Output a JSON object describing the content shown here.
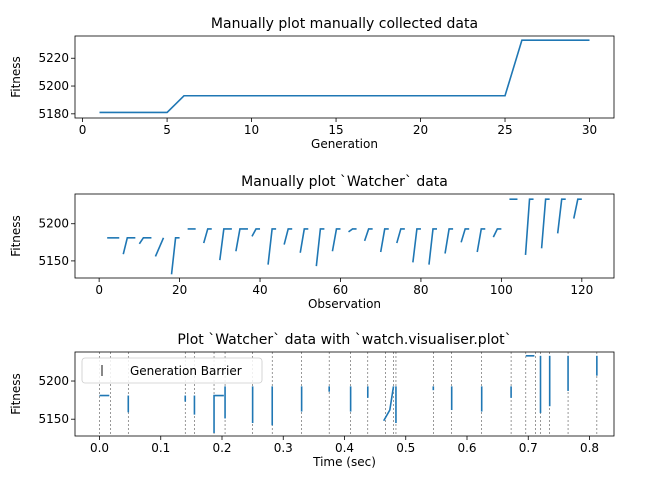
{
  "chart_data": [
    {
      "type": "line",
      "title": "Manually plot manually collected data",
      "xlabel": "Generation",
      "ylabel": "Fitness",
      "xlim": [
        -0.45,
        31.45
      ],
      "ylim": [
        5177,
        5236
      ],
      "xticks": [
        0,
        5,
        10,
        15,
        20,
        25,
        30
      ],
      "yticks": [
        5180,
        5200,
        5220
      ],
      "color": "#1f77b4",
      "x": [
        1,
        5,
        6,
        25,
        26,
        30
      ],
      "y": [
        5181,
        5181,
        5193,
        5193,
        5233,
        5233
      ]
    },
    {
      "type": "line",
      "title": "Manually plot `Watcher` data",
      "xlabel": "Observation",
      "ylabel": "Fitness",
      "xlim": [
        -6,
        128
      ],
      "ylim": [
        5127,
        5240
      ],
      "xticks": [
        0,
        20,
        40,
        60,
        80,
        100,
        120
      ],
      "yticks": [
        5150,
        5200
      ],
      "color": "#1f77b4",
      "segments": [
        [
          [
            2,
            5181
          ],
          [
            5,
            5181
          ]
        ],
        [
          [
            6,
            5159
          ],
          [
            7,
            5181
          ],
          [
            9,
            5181
          ]
        ],
        [
          [
            10,
            5173
          ],
          [
            11,
            5181
          ],
          [
            13,
            5181
          ]
        ],
        [
          [
            14,
            5156
          ],
          [
            16,
            5181
          ]
        ],
        [
          [
            18,
            5132
          ],
          [
            19,
            5181
          ],
          [
            20,
            5181
          ]
        ],
        [
          [
            22,
            5193
          ],
          [
            24,
            5193
          ]
        ],
        [
          [
            26,
            5174
          ],
          [
            27,
            5193
          ],
          [
            28,
            5193
          ]
        ],
        [
          [
            30,
            5151
          ],
          [
            31,
            5193
          ],
          [
            33,
            5193
          ]
        ],
        [
          [
            34,
            5163
          ],
          [
            35,
            5193
          ],
          [
            37,
            5193
          ]
        ],
        [
          [
            38,
            5183
          ],
          [
            39,
            5193
          ],
          [
            40,
            5193
          ]
        ],
        [
          [
            42,
            5145
          ],
          [
            43,
            5193
          ],
          [
            44,
            5193
          ]
        ],
        [
          [
            46,
            5172
          ],
          [
            47,
            5193
          ],
          [
            48,
            5193
          ]
        ],
        [
          [
            50,
            5161
          ],
          [
            51,
            5193
          ],
          [
            52,
            5193
          ]
        ],
        [
          [
            54,
            5143
          ],
          [
            55,
            5193
          ],
          [
            56,
            5193
          ]
        ],
        [
          [
            58,
            5163
          ],
          [
            59,
            5193
          ],
          [
            60,
            5193
          ]
        ],
        [
          [
            62,
            5189
          ],
          [
            63,
            5193
          ],
          [
            64,
            5193
          ]
        ],
        [
          [
            66,
            5177
          ],
          [
            67,
            5193
          ],
          [
            68,
            5193
          ]
        ],
        [
          [
            70,
            5162
          ],
          [
            71,
            5193
          ],
          [
            72,
            5193
          ]
        ],
        [
          [
            74,
            5174
          ],
          [
            75,
            5193
          ],
          [
            76,
            5193
          ]
        ],
        [
          [
            78,
            5148
          ],
          [
            79,
            5193
          ],
          [
            80,
            5193
          ]
        ],
        [
          [
            82,
            5145
          ],
          [
            83,
            5193
          ],
          [
            84,
            5193
          ]
        ],
        [
          [
            86,
            5160
          ],
          [
            87,
            5193
          ],
          [
            88,
            5193
          ]
        ],
        [
          [
            90,
            5175
          ],
          [
            91,
            5193
          ],
          [
            92,
            5193
          ]
        ],
        [
          [
            94,
            5162
          ],
          [
            95,
            5193
          ],
          [
            96,
            5193
          ]
        ],
        [
          [
            98,
            5182
          ],
          [
            99,
            5193
          ],
          [
            100,
            5193
          ]
        ],
        [
          [
            102,
            5233
          ],
          [
            104,
            5233
          ]
        ],
        [
          [
            106,
            5158
          ],
          [
            107,
            5233
          ],
          [
            108,
            5233
          ]
        ],
        [
          [
            110,
            5167
          ],
          [
            111,
            5233
          ],
          [
            112,
            5233
          ]
        ],
        [
          [
            114,
            5187
          ],
          [
            115,
            5233
          ],
          [
            116,
            5233
          ]
        ],
        [
          [
            118,
            5207
          ],
          [
            119,
            5233
          ],
          [
            120,
            5233
          ]
        ]
      ]
    },
    {
      "type": "line",
      "title": "Plot `Watcher` data with `watch.visualiser.plot`",
      "xlabel": "Time (sec)",
      "ylabel": "Fitness",
      "xlim": [
        -0.04,
        0.84
      ],
      "ylim": [
        5128,
        5238
      ],
      "xticks": [
        0.0,
        0.1,
        0.2,
        0.3,
        0.4,
        0.5,
        0.6,
        0.7,
        0.8
      ],
      "xtick_labels": [
        "0.0",
        "0.1",
        "0.2",
        "0.3",
        "0.4",
        "0.5",
        "0.6",
        "0.7",
        "0.8"
      ],
      "yticks": [
        5150,
        5200
      ],
      "color": "#1f77b4",
      "legend": "Generation Barrier",
      "legend_location": "upper-left",
      "barriers": [
        0.0,
        0.018,
        0.047,
        0.14,
        0.155,
        0.187,
        0.205,
        0.25,
        0.282,
        0.33,
        0.375,
        0.41,
        0.438,
        0.467,
        0.48,
        0.484,
        0.545,
        0.575,
        0.624,
        0.672,
        0.696,
        0.712,
        0.72,
        0.735,
        0.765,
        0.812
      ],
      "segments": [
        [
          [
            0.0,
            5181
          ],
          [
            0.016,
            5181
          ]
        ],
        [
          [
            0.047,
            5159
          ],
          [
            0.047,
            5181
          ]
        ],
        [
          [
            0.14,
            5173
          ],
          [
            0.14,
            5181
          ]
        ],
        [
          [
            0.155,
            5156
          ],
          [
            0.155,
            5181
          ]
        ],
        [
          [
            0.187,
            5132
          ],
          [
            0.187,
            5181
          ],
          [
            0.203,
            5181
          ]
        ],
        [
          [
            0.205,
            5151
          ],
          [
            0.205,
            5193
          ]
        ],
        [
          [
            0.25,
            5145
          ],
          [
            0.25,
            5193
          ]
        ],
        [
          [
            0.282,
            5142
          ],
          [
            0.282,
            5193
          ]
        ],
        [
          [
            0.33,
            5160
          ],
          [
            0.33,
            5193
          ]
        ],
        [
          [
            0.375,
            5186
          ],
          [
            0.375,
            5193
          ]
        ],
        [
          [
            0.41,
            5160
          ],
          [
            0.41,
            5193
          ]
        ],
        [
          [
            0.438,
            5178
          ],
          [
            0.438,
            5193
          ]
        ],
        [
          [
            0.464,
            5148
          ],
          [
            0.474,
            5162
          ],
          [
            0.48,
            5193
          ]
        ],
        [
          [
            0.484,
            5145
          ],
          [
            0.484,
            5193
          ]
        ],
        [
          [
            0.545,
            5188
          ],
          [
            0.545,
            5193
          ]
        ],
        [
          [
            0.575,
            5162
          ],
          [
            0.575,
            5193
          ]
        ],
        [
          [
            0.624,
            5160
          ],
          [
            0.624,
            5193
          ]
        ],
        [
          [
            0.672,
            5178
          ],
          [
            0.672,
            5193
          ]
        ],
        [
          [
            0.696,
            5233
          ],
          [
            0.71,
            5233
          ]
        ],
        [
          [
            0.72,
            5158
          ],
          [
            0.72,
            5233
          ]
        ],
        [
          [
            0.735,
            5167
          ],
          [
            0.735,
            5233
          ]
        ],
        [
          [
            0.765,
            5187
          ],
          [
            0.765,
            5233
          ]
        ],
        [
          [
            0.812,
            5207
          ],
          [
            0.812,
            5233
          ]
        ]
      ]
    }
  ]
}
